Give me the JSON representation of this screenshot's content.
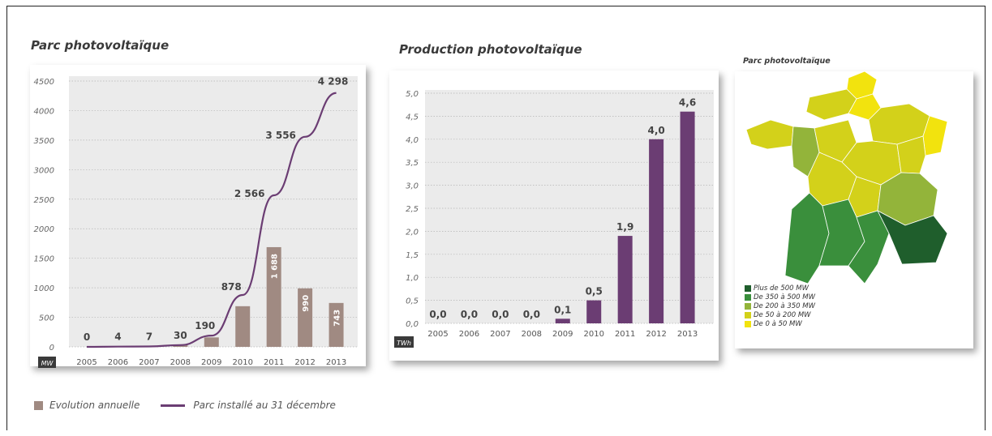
{
  "titles": {
    "chart1": "Parc photovoltaïque",
    "chart2": "Production photovoltaïque",
    "map": "Parc photovoltaïque"
  },
  "colors": {
    "bar1": "#a08a82",
    "line1": "#6b3d73",
    "bar2": "#6b3d73",
    "plot_bg": "#ebebeb"
  },
  "chart_data": [
    {
      "type": "bar",
      "title": "Parc photovoltaïque",
      "unit_label": "MW",
      "categories": [
        "2005",
        "2006",
        "2007",
        "2008",
        "2009",
        "2010",
        "2011",
        "2012",
        "2013"
      ],
      "ylim": [
        0,
        4500
      ],
      "yticks": [
        "0",
        "500",
        "1000",
        "1500",
        "2000",
        "2500",
        "3000",
        "3500",
        "4000",
        "4500"
      ],
      "series": [
        {
          "name": "Evolution annuelle",
          "type": "bar",
          "values": [
            0,
            4,
            7,
            30,
            160,
            688,
            1688,
            990,
            743
          ],
          "labels": [
            "",
            "",
            "",
            "",
            "",
            "",
            "1 688",
            "990",
            "743"
          ]
        },
        {
          "name": "Parc installé au 31 décembre",
          "type": "line",
          "values": [
            0,
            4,
            7,
            30,
            190,
            878,
            2566,
            3556,
            4298
          ],
          "labels": [
            "0",
            "4",
            "7",
            "30",
            "190",
            "878",
            "2 566",
            "3 556",
            "4 298"
          ]
        }
      ],
      "legend": "bottom"
    },
    {
      "type": "bar",
      "title": "Production photovoltaïque",
      "unit_label": "TWh",
      "categories": [
        "2005",
        "2006",
        "2007",
        "2008",
        "2009",
        "2010",
        "2011",
        "2012",
        "2013"
      ],
      "values": [
        0.0,
        0.0,
        0.0,
        0.0,
        0.1,
        0.5,
        1.9,
        4.0,
        4.6
      ],
      "labels": [
        "0,0",
        "0,0",
        "0,0",
        "0,0",
        "0,1",
        "0,5",
        "1,9",
        "4,0",
        "4,6"
      ],
      "ylim": [
        0,
        5
      ],
      "yticks": [
        "0,0",
        "0,5",
        "1,0",
        "1,5",
        "2,0",
        "2,5",
        "3,0",
        "3,5",
        "4,0",
        "4,5",
        "5,0"
      ]
    }
  ],
  "map": {
    "title": "Parc photovoltaïque",
    "legend": [
      {
        "label": "Plus de 500 MW",
        "color": "#1f5e2c"
      },
      {
        "label": "De 350 à 500 MW",
        "color": "#3a8f3c"
      },
      {
        "label": "De 200 à 350 MW",
        "color": "#93b43a"
      },
      {
        "label": "De 50 à 200 MW",
        "color": "#d3d11a"
      },
      {
        "label": "De 0 à 50 MW",
        "color": "#f2e30e"
      }
    ]
  }
}
